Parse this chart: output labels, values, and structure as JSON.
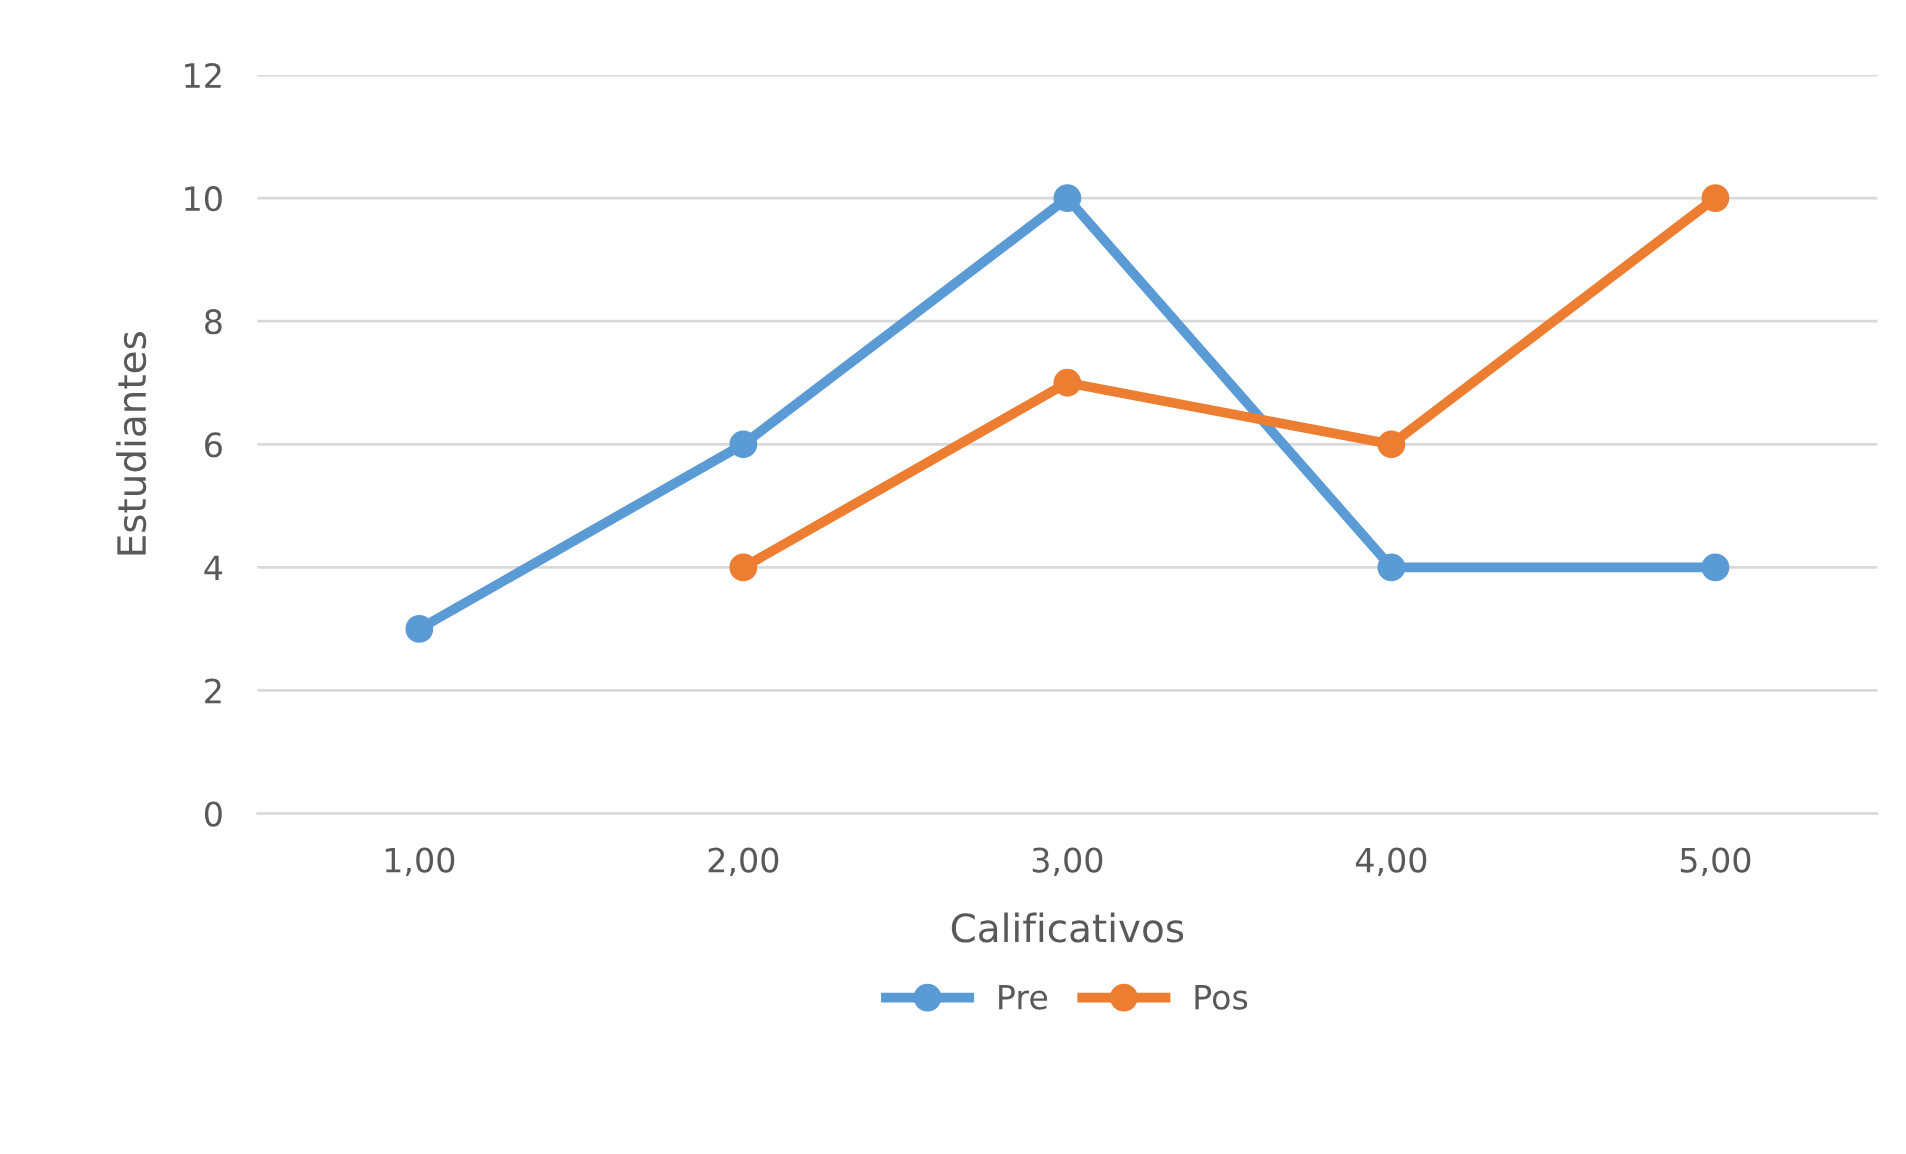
{
  "chart_data": {
    "type": "line",
    "xlabel": "Calificativos",
    "ylabel": "Estudiantes",
    "categories": [
      "1,00",
      "2,00",
      "3,00",
      "4,00",
      "5,00"
    ],
    "series": [
      {
        "name": "Pre",
        "color": "#5b9bd5",
        "values": [
          3,
          6,
          10,
          4,
          4
        ]
      },
      {
        "name": "Pos",
        "color": "#ed7d31",
        "values": [
          null,
          4,
          7,
          6,
          10
        ]
      }
    ],
    "ylim": [
      0,
      12
    ],
    "yticks": [
      0,
      2,
      4,
      6,
      8,
      10,
      12
    ],
    "grid": "y",
    "legend": "bottom",
    "marker": "circle",
    "line_style": "solid"
  }
}
